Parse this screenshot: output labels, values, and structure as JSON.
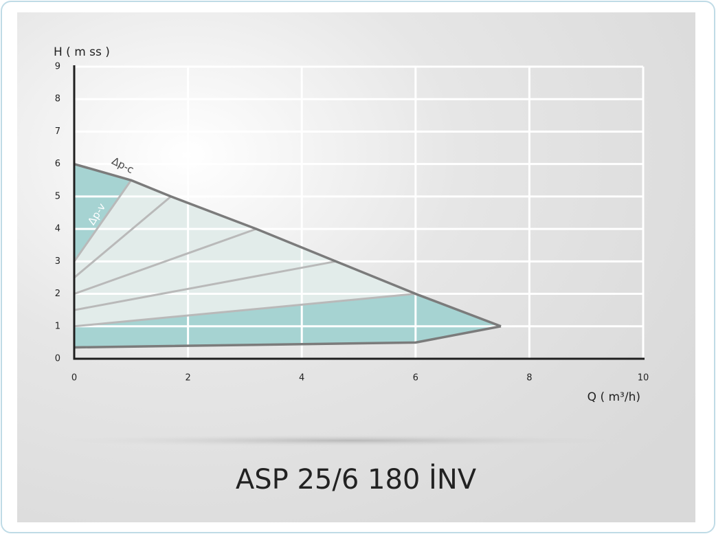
{
  "chart_data": {
    "type": "line",
    "title": "ASP 25/6 180 İNV",
    "y_label": "H ( m ss )",
    "x_label": "Q ( m³/h)",
    "xlim": [
      0,
      10
    ],
    "ylim": [
      0,
      9
    ],
    "xticks": [
      0,
      2,
      4,
      6,
      8,
      10
    ],
    "yticks": [
      0,
      1,
      2,
      3,
      4,
      5,
      6,
      7,
      8,
      9
    ],
    "grid": true,
    "fill_color": "#a6d3d2",
    "light_fill_color": "#e2ecea",
    "series": [
      {
        "name": "Δp-c",
        "color": "#7b7b7b",
        "x": [
          0,
          1,
          1.7,
          3.2,
          4.6,
          6,
          7.5
        ],
        "values": [
          6,
          5.5,
          5,
          4,
          3,
          2,
          1
        ]
      },
      {
        "name": "Δp-v",
        "color": "#b9b9b9",
        "x": [
          0,
          1
        ],
        "values": [
          3,
          5.5
        ]
      },
      {
        "color": "#b9b9b9",
        "x": [
          0,
          1.7
        ],
        "values": [
          2.5,
          5
        ]
      },
      {
        "color": "#b9b9b9",
        "x": [
          0,
          3.2
        ],
        "values": [
          2,
          4
        ]
      },
      {
        "color": "#b9b9b9",
        "x": [
          0,
          4.6
        ],
        "values": [
          1.5,
          3
        ]
      },
      {
        "color": "#b9b9b9",
        "x": [
          0,
          6,
          7.5
        ],
        "values": [
          1,
          2,
          1
        ]
      },
      {
        "color": "#7b7b7b",
        "x": [
          0,
          6,
          7.5
        ],
        "values": [
          0.35,
          0.5,
          1
        ]
      }
    ]
  }
}
